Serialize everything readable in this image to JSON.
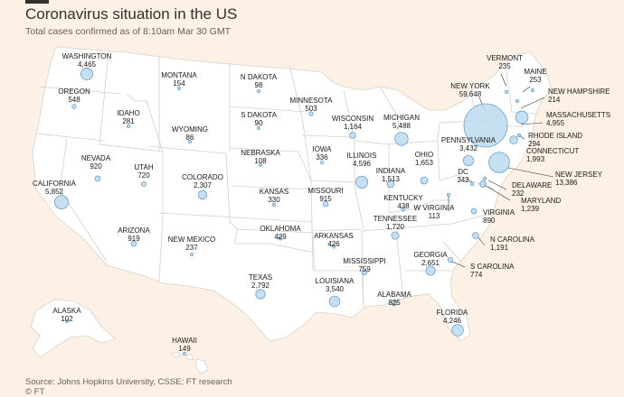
{
  "header": {
    "title": "Coronavirus situation in the US",
    "subtitle": "Total cases confirmed as of 8:10am Mar 30 GMT"
  },
  "footer": {
    "source": "Source: Johns Hopkins University, CSSE; FT research",
    "copyright": "© FT"
  },
  "colors": {
    "background": "#fdf1e6",
    "land": "#ffffff",
    "bubble_fill": "#bcd9ef",
    "bubble_stroke": "#6a9fc9"
  },
  "states": [
    {
      "id": "washington",
      "name": "WASHINGTON",
      "cases": 4465,
      "cases_label": "4,465"
    },
    {
      "id": "oregon",
      "name": "OREGON",
      "cases": 548,
      "cases_label": "548"
    },
    {
      "id": "california",
      "name": "CALIFORNIA",
      "cases": 5852,
      "cases_label": "5,852"
    },
    {
      "id": "nevada",
      "name": "NEVADA",
      "cases": 920,
      "cases_label": "920"
    },
    {
      "id": "idaho",
      "name": "IDAHO",
      "cases": 281,
      "cases_label": "281"
    },
    {
      "id": "montana",
      "name": "MONTANA",
      "cases": 154,
      "cases_label": "154"
    },
    {
      "id": "wyoming",
      "name": "WYOMING",
      "cases": 86,
      "cases_label": "86"
    },
    {
      "id": "utah",
      "name": "UTAH",
      "cases": 720,
      "cases_label": "720"
    },
    {
      "id": "arizona",
      "name": "ARIZONA",
      "cases": 919,
      "cases_label": "919"
    },
    {
      "id": "colorado",
      "name": "COLORADO",
      "cases": 2307,
      "cases_label": "2,307"
    },
    {
      "id": "new-mexico",
      "name": "NEW MEXICO",
      "cases": 237,
      "cases_label": "237"
    },
    {
      "id": "north-dakota",
      "name": "N DAKOTA",
      "cases": 98,
      "cases_label": "98"
    },
    {
      "id": "south-dakota",
      "name": "S DAKOTA",
      "cases": 90,
      "cases_label": "90"
    },
    {
      "id": "nebraska",
      "name": "NEBRASKA",
      "cases": 108,
      "cases_label": "108"
    },
    {
      "id": "kansas",
      "name": "KANSAS",
      "cases": 330,
      "cases_label": "330"
    },
    {
      "id": "oklahoma",
      "name": "OKLAHOMA",
      "cases": 429,
      "cases_label": "429"
    },
    {
      "id": "texas",
      "name": "TEXAS",
      "cases": 2792,
      "cases_label": "2,792"
    },
    {
      "id": "minnesota",
      "name": "MINNESOTA",
      "cases": 503,
      "cases_label": "503"
    },
    {
      "id": "iowa",
      "name": "IOWA",
      "cases": 336,
      "cases_label": "336"
    },
    {
      "id": "missouri",
      "name": "MISSOURI",
      "cases": 915,
      "cases_label": "915"
    },
    {
      "id": "arkansas",
      "name": "ARKANSAS",
      "cases": 426,
      "cases_label": "426"
    },
    {
      "id": "louisiana",
      "name": "LOUISIANA",
      "cases": 3540,
      "cases_label": "3,540"
    },
    {
      "id": "wisconsin",
      "name": "WISCONSIN",
      "cases": 1164,
      "cases_label": "1,164"
    },
    {
      "id": "illinois",
      "name": "ILLINOIS",
      "cases": 4596,
      "cases_label": "4,596"
    },
    {
      "id": "mississippi",
      "name": "MISSISSIPPI",
      "cases": 759,
      "cases_label": "759"
    },
    {
      "id": "michigan",
      "name": "MICHIGAN",
      "cases": 5488,
      "cases_label": "5,488"
    },
    {
      "id": "indiana",
      "name": "INDIANA",
      "cases": 1513,
      "cases_label": "1,513"
    },
    {
      "id": "kentucky",
      "name": "KENTUCKY",
      "cases": 438,
      "cases_label": "438"
    },
    {
      "id": "tennessee",
      "name": "TENNESSEE",
      "cases": 1720,
      "cases_label": "1,720"
    },
    {
      "id": "alabama",
      "name": "ALABAMA",
      "cases": 825,
      "cases_label": "825"
    },
    {
      "id": "ohio",
      "name": "OHIO",
      "cases": 1653,
      "cases_label": "1,653"
    },
    {
      "id": "georgia",
      "name": "GEORGIA",
      "cases": 2651,
      "cases_label": "2,651"
    },
    {
      "id": "florida",
      "name": "FLORIDA",
      "cases": 4246,
      "cases_label": "4,246"
    },
    {
      "id": "south-carolina",
      "name": "S CAROLINA",
      "cases": 774,
      "cases_label": "774"
    },
    {
      "id": "north-carolina",
      "name": "N CAROLINA",
      "cases": 1191,
      "cases_label": "1,191"
    },
    {
      "id": "west-virginia",
      "name": "W VIRGINIA",
      "cases": 113,
      "cases_label": "113"
    },
    {
      "id": "virginia",
      "name": "VIRGINIA",
      "cases": 890,
      "cases_label": "890"
    },
    {
      "id": "pennsylvania",
      "name": "PENNSYLVANIA",
      "cases": 3432,
      "cases_label": "3,432"
    },
    {
      "id": "new-york",
      "name": "NEW YORK",
      "cases": 59648,
      "cases_label": "59,648"
    },
    {
      "id": "vermont",
      "name": "VERMONT",
      "cases": 235,
      "cases_label": "235"
    },
    {
      "id": "maine",
      "name": "MAINE",
      "cases": 253,
      "cases_label": "253"
    },
    {
      "id": "new-hampshire",
      "name": "NEW HAMPSHIRE",
      "cases": 214,
      "cases_label": "214"
    },
    {
      "id": "massachusetts",
      "name": "MASSACHUSETTS",
      "cases": 4955,
      "cases_label": "4,955"
    },
    {
      "id": "rhode-island",
      "name": "RHODE ISLAND",
      "cases": 294,
      "cases_label": "294"
    },
    {
      "id": "connecticut",
      "name": "CONNECTICUT",
      "cases": 1993,
      "cases_label": "1,993"
    },
    {
      "id": "new-jersey",
      "name": "NEW JERSEY",
      "cases": 13386,
      "cases_label": "13,386"
    },
    {
      "id": "delaware",
      "name": "DELAWARE",
      "cases": 232,
      "cases_label": "232"
    },
    {
      "id": "maryland",
      "name": "MARYLAND",
      "cases": 1239,
      "cases_label": "1,239"
    },
    {
      "id": "dc",
      "name": "DC",
      "cases": 342,
      "cases_label": "342"
    },
    {
      "id": "alaska",
      "name": "ALASKA",
      "cases": 102,
      "cases_label": "102"
    },
    {
      "id": "hawaii",
      "name": "HAWAII",
      "cases": 149,
      "cases_label": "149"
    }
  ]
}
